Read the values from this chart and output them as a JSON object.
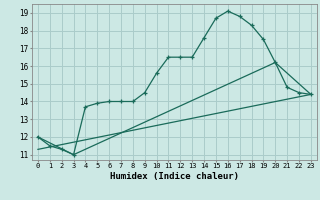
{
  "xlabel": "Humidex (Indice chaleur)",
  "bg_color": "#cce8e4",
  "grid_color": "#aaccca",
  "line_color": "#1a6b5a",
  "xlim": [
    -0.5,
    23.5
  ],
  "ylim": [
    10.7,
    19.5
  ],
  "xticks": [
    0,
    1,
    2,
    3,
    4,
    5,
    6,
    7,
    8,
    9,
    10,
    11,
    12,
    13,
    14,
    15,
    16,
    17,
    18,
    19,
    20,
    21,
    22,
    23
  ],
  "yticks": [
    11,
    12,
    13,
    14,
    15,
    16,
    17,
    18,
    19
  ],
  "line1_x": [
    0,
    1,
    2,
    3,
    4,
    5,
    6,
    7,
    8,
    9,
    10,
    11,
    12,
    13,
    14,
    15,
    16,
    17,
    18,
    19,
    20,
    21,
    22,
    23
  ],
  "line1_y": [
    12.0,
    11.5,
    11.3,
    11.0,
    13.7,
    13.9,
    14.0,
    14.0,
    14.0,
    14.5,
    15.6,
    16.5,
    16.5,
    16.5,
    17.6,
    18.7,
    19.1,
    18.8,
    18.3,
    17.5,
    16.2,
    14.8,
    14.5,
    14.4
  ],
  "line2_x": [
    0,
    3,
    20,
    23
  ],
  "line2_y": [
    12.0,
    11.0,
    16.2,
    14.4
  ],
  "line3_x": [
    0,
    23
  ],
  "line3_y": [
    11.3,
    14.4
  ]
}
